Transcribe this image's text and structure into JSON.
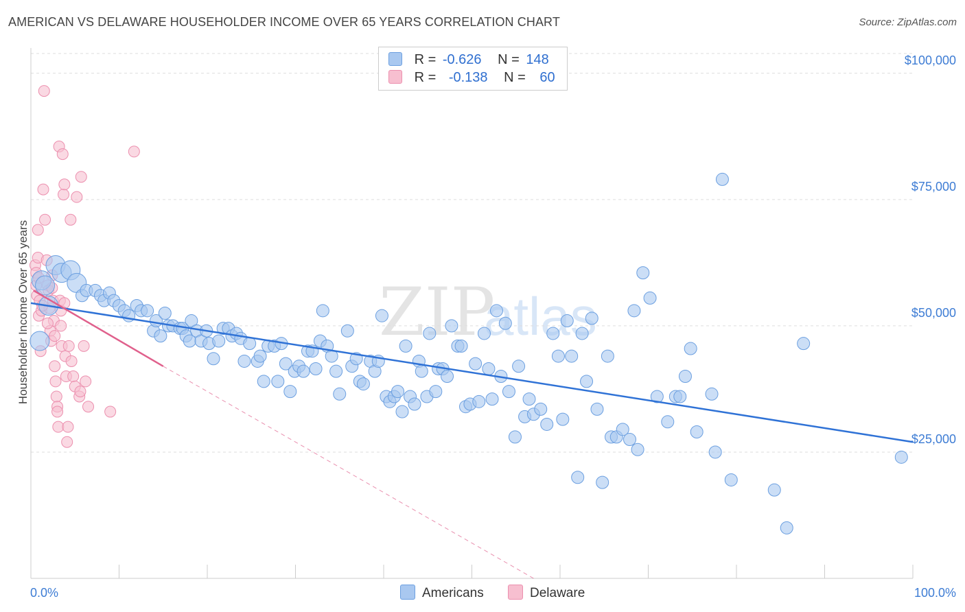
{
  "header": {
    "title": "AMERICAN VS DELAWARE HOUSEHOLDER INCOME OVER 65 YEARS CORRELATION CHART",
    "source": "Source: ZipAtlas.com"
  },
  "watermark": {
    "zip": "ZIP",
    "atlas": "atlas"
  },
  "legend": {
    "rows": [
      {
        "r_label": "R =",
        "r_value": "-0.626",
        "n_label": "N =",
        "n_value": "148"
      },
      {
        "r_label": "R =",
        "r_value": "-0.138",
        "n_label": "N =",
        "n_value": "60"
      }
    ],
    "bottom": [
      "Americans",
      "Delaware"
    ]
  },
  "colors": {
    "americans_fill": "#a9c8f0",
    "americans_stroke": "#6b9fe0",
    "americans_line": "#2f72d6",
    "delaware_fill": "#f7bfd0",
    "delaware_stroke": "#ec8fae",
    "delaware_line": "#e0608c",
    "axis_text": "#3d7cd4",
    "grid": "#dddddd"
  },
  "chart_data": {
    "type": "scatter",
    "title": "AMERICAN VS DELAWARE HOUSEHOLDER INCOME OVER 65 YEARS CORRELATION CHART",
    "xlabel": "",
    "ylabel": "Householder Income Over 65 years",
    "xlim": [
      0,
      100
    ],
    "ylim": [
      0,
      105000
    ],
    "x_tick_labels": [
      "0.0%",
      "100.0%"
    ],
    "y_ticks": [
      25000,
      50000,
      75000,
      100000
    ],
    "y_tick_labels": [
      "$25,000",
      "$50,000",
      "$75,000",
      "$100,000"
    ],
    "grid": true,
    "legend_placement": "top-center",
    "series": [
      {
        "name": "Americans",
        "r": -0.626,
        "n": 148,
        "trend": {
          "x": [
            0,
            100
          ],
          "y": [
            54500,
            27000
          ]
        },
        "points": [
          [
            1.0,
            47000
          ],
          [
            1.2,
            59000
          ],
          [
            1.6,
            58000
          ],
          [
            2.0,
            54000
          ],
          [
            2.8,
            62000
          ],
          [
            3.5,
            60500
          ],
          [
            4.5,
            61000
          ],
          [
            5.2,
            58500
          ],
          [
            5.8,
            56000
          ],
          [
            6.3,
            57000
          ],
          [
            7.3,
            57000
          ],
          [
            7.9,
            56000
          ],
          [
            8.3,
            55000
          ],
          [
            8.9,
            56500
          ],
          [
            9.4,
            55000
          ],
          [
            10.0,
            54000
          ],
          [
            10.6,
            53000
          ],
          [
            11.1,
            52000
          ],
          [
            12.0,
            54000
          ],
          [
            12.5,
            53000
          ],
          [
            13.2,
            53000
          ],
          [
            13.9,
            49000
          ],
          [
            14.2,
            51000
          ],
          [
            14.7,
            48000
          ],
          [
            15.2,
            52500
          ],
          [
            15.6,
            50000
          ],
          [
            16.1,
            50000
          ],
          [
            16.9,
            49500
          ],
          [
            17.2,
            49500
          ],
          [
            17.6,
            48000
          ],
          [
            18.0,
            47000
          ],
          [
            18.2,
            51000
          ],
          [
            18.8,
            49000
          ],
          [
            19.3,
            47000
          ],
          [
            19.9,
            49000
          ],
          [
            20.2,
            46500
          ],
          [
            20.7,
            43500
          ],
          [
            21.3,
            47000
          ],
          [
            21.8,
            49500
          ],
          [
            22.4,
            49500
          ],
          [
            22.8,
            48000
          ],
          [
            23.3,
            48500
          ],
          [
            23.8,
            47500
          ],
          [
            24.2,
            43000
          ],
          [
            24.8,
            46500
          ],
          [
            25.7,
            43000
          ],
          [
            26.0,
            44000
          ],
          [
            26.4,
            39000
          ],
          [
            26.9,
            46000
          ],
          [
            27.6,
            46000
          ],
          [
            28.0,
            39000
          ],
          [
            28.4,
            46500
          ],
          [
            28.9,
            42500
          ],
          [
            29.4,
            37000
          ],
          [
            29.9,
            41000
          ],
          [
            30.4,
            42000
          ],
          [
            30.9,
            41000
          ],
          [
            31.4,
            45000
          ],
          [
            31.9,
            45000
          ],
          [
            32.3,
            41500
          ],
          [
            32.8,
            47000
          ],
          [
            33.1,
            53000
          ],
          [
            33.6,
            46000
          ],
          [
            34.1,
            44000
          ],
          [
            34.6,
            41000
          ],
          [
            35.0,
            36500
          ],
          [
            35.9,
            49000
          ],
          [
            36.4,
            42000
          ],
          [
            36.9,
            43500
          ],
          [
            37.3,
            39000
          ],
          [
            37.7,
            38500
          ],
          [
            38.5,
            43000
          ],
          [
            39.0,
            41000
          ],
          [
            39.4,
            43000
          ],
          [
            39.8,
            52000
          ],
          [
            40.3,
            36000
          ],
          [
            40.7,
            35000
          ],
          [
            41.2,
            36000
          ],
          [
            41.6,
            37000
          ],
          [
            42.1,
            33000
          ],
          [
            42.5,
            46000
          ],
          [
            43.0,
            36000
          ],
          [
            43.5,
            34500
          ],
          [
            44.0,
            43000
          ],
          [
            44.3,
            41000
          ],
          [
            44.9,
            36000
          ],
          [
            45.2,
            48500
          ],
          [
            45.9,
            37000
          ],
          [
            46.2,
            41500
          ],
          [
            46.7,
            41500
          ],
          [
            47.2,
            40000
          ],
          [
            47.7,
            50000
          ],
          [
            48.4,
            46000
          ],
          [
            48.8,
            46000
          ],
          [
            49.3,
            34000
          ],
          [
            49.8,
            34500
          ],
          [
            50.4,
            42500
          ],
          [
            50.8,
            35000
          ],
          [
            51.4,
            48500
          ],
          [
            51.9,
            41500
          ],
          [
            52.3,
            35500
          ],
          [
            52.8,
            53000
          ],
          [
            53.3,
            40000
          ],
          [
            53.8,
            50500
          ],
          [
            54.2,
            37000
          ],
          [
            54.9,
            28000
          ],
          [
            55.3,
            42000
          ],
          [
            56.0,
            32000
          ],
          [
            56.5,
            35500
          ],
          [
            57.0,
            32500
          ],
          [
            57.8,
            33500
          ],
          [
            58.5,
            30500
          ],
          [
            59.2,
            48500
          ],
          [
            59.8,
            44000
          ],
          [
            60.3,
            31500
          ],
          [
            60.8,
            51000
          ],
          [
            61.3,
            44000
          ],
          [
            62.0,
            20000
          ],
          [
            62.5,
            48500
          ],
          [
            63.0,
            39000
          ],
          [
            63.6,
            51500
          ],
          [
            64.2,
            33500
          ],
          [
            64.8,
            19000
          ],
          [
            65.4,
            44000
          ],
          [
            65.8,
            28000
          ],
          [
            66.4,
            28000
          ],
          [
            67.1,
            29500
          ],
          [
            67.9,
            27500
          ],
          [
            68.4,
            53000
          ],
          [
            68.8,
            25500
          ],
          [
            69.4,
            60500
          ],
          [
            70.2,
            55500
          ],
          [
            71.0,
            36000
          ],
          [
            72.2,
            31000
          ],
          [
            73.1,
            36000
          ],
          [
            73.6,
            36000
          ],
          [
            74.2,
            40000
          ],
          [
            74.8,
            45500
          ],
          [
            75.5,
            29000
          ],
          [
            77.2,
            36500
          ],
          [
            77.6,
            25000
          ],
          [
            78.4,
            79000
          ],
          [
            79.4,
            19500
          ],
          [
            84.3,
            17500
          ],
          [
            85.7,
            10000
          ],
          [
            87.6,
            46500
          ],
          [
            98.7,
            24000
          ]
        ]
      },
      {
        "name": "Delaware",
        "r": -0.138,
        "n": 60,
        "trend_solid": {
          "x": [
            0.3,
            15
          ],
          "y": [
            57000,
            42000
          ]
        },
        "trend_dashed": {
          "x": [
            15,
            57
          ],
          "y": [
            42000,
            0
          ]
        },
        "points": [
          [
            0.5,
            62000
          ],
          [
            0.6,
            60500
          ],
          [
            0.6,
            58000
          ],
          [
            0.7,
            56000
          ],
          [
            0.8,
            69000
          ],
          [
            0.8,
            63500
          ],
          [
            0.9,
            52000
          ],
          [
            1.0,
            55000
          ],
          [
            1.1,
            45000
          ],
          [
            1.2,
            53000
          ],
          [
            1.4,
            77000
          ],
          [
            1.5,
            96500
          ],
          [
            1.6,
            71000
          ],
          [
            1.8,
            63000
          ],
          [
            1.9,
            58000
          ],
          [
            2.0,
            57000
          ],
          [
            2.1,
            53500
          ],
          [
            2.2,
            49000
          ],
          [
            2.3,
            47000
          ],
          [
            2.4,
            60000
          ],
          [
            2.5,
            55000
          ],
          [
            2.6,
            51000
          ],
          [
            2.7,
            42000
          ],
          [
            2.8,
            39000
          ],
          [
            2.9,
            36000
          ],
          [
            3.0,
            34000
          ],
          [
            3.0,
            33000
          ],
          [
            3.1,
            30000
          ],
          [
            3.2,
            85500
          ],
          [
            3.3,
            55000
          ],
          [
            3.4,
            53000
          ],
          [
            3.4,
            50000
          ],
          [
            3.5,
            46000
          ],
          [
            3.6,
            84000
          ],
          [
            3.7,
            76000
          ],
          [
            3.8,
            78000
          ],
          [
            3.9,
            44000
          ],
          [
            4.0,
            40000
          ],
          [
            4.1,
            27000
          ],
          [
            4.2,
            30000
          ],
          [
            4.3,
            46000
          ],
          [
            4.5,
            71000
          ],
          [
            4.6,
            43000
          ],
          [
            4.8,
            40000
          ],
          [
            5.0,
            38000
          ],
          [
            5.2,
            75500
          ],
          [
            5.5,
            36000
          ],
          [
            5.7,
            79500
          ],
          [
            6.0,
            46000
          ],
          [
            6.2,
            39000
          ],
          [
            6.5,
            34000
          ],
          [
            1.9,
            50500
          ],
          [
            2.4,
            57500
          ],
          [
            3.8,
            54500
          ],
          [
            0.9,
            59500
          ],
          [
            1.3,
            54000
          ],
          [
            2.7,
            48000
          ],
          [
            5.6,
            37000
          ],
          [
            9.0,
            33000
          ],
          [
            11.7,
            84500
          ]
        ]
      }
    ]
  }
}
